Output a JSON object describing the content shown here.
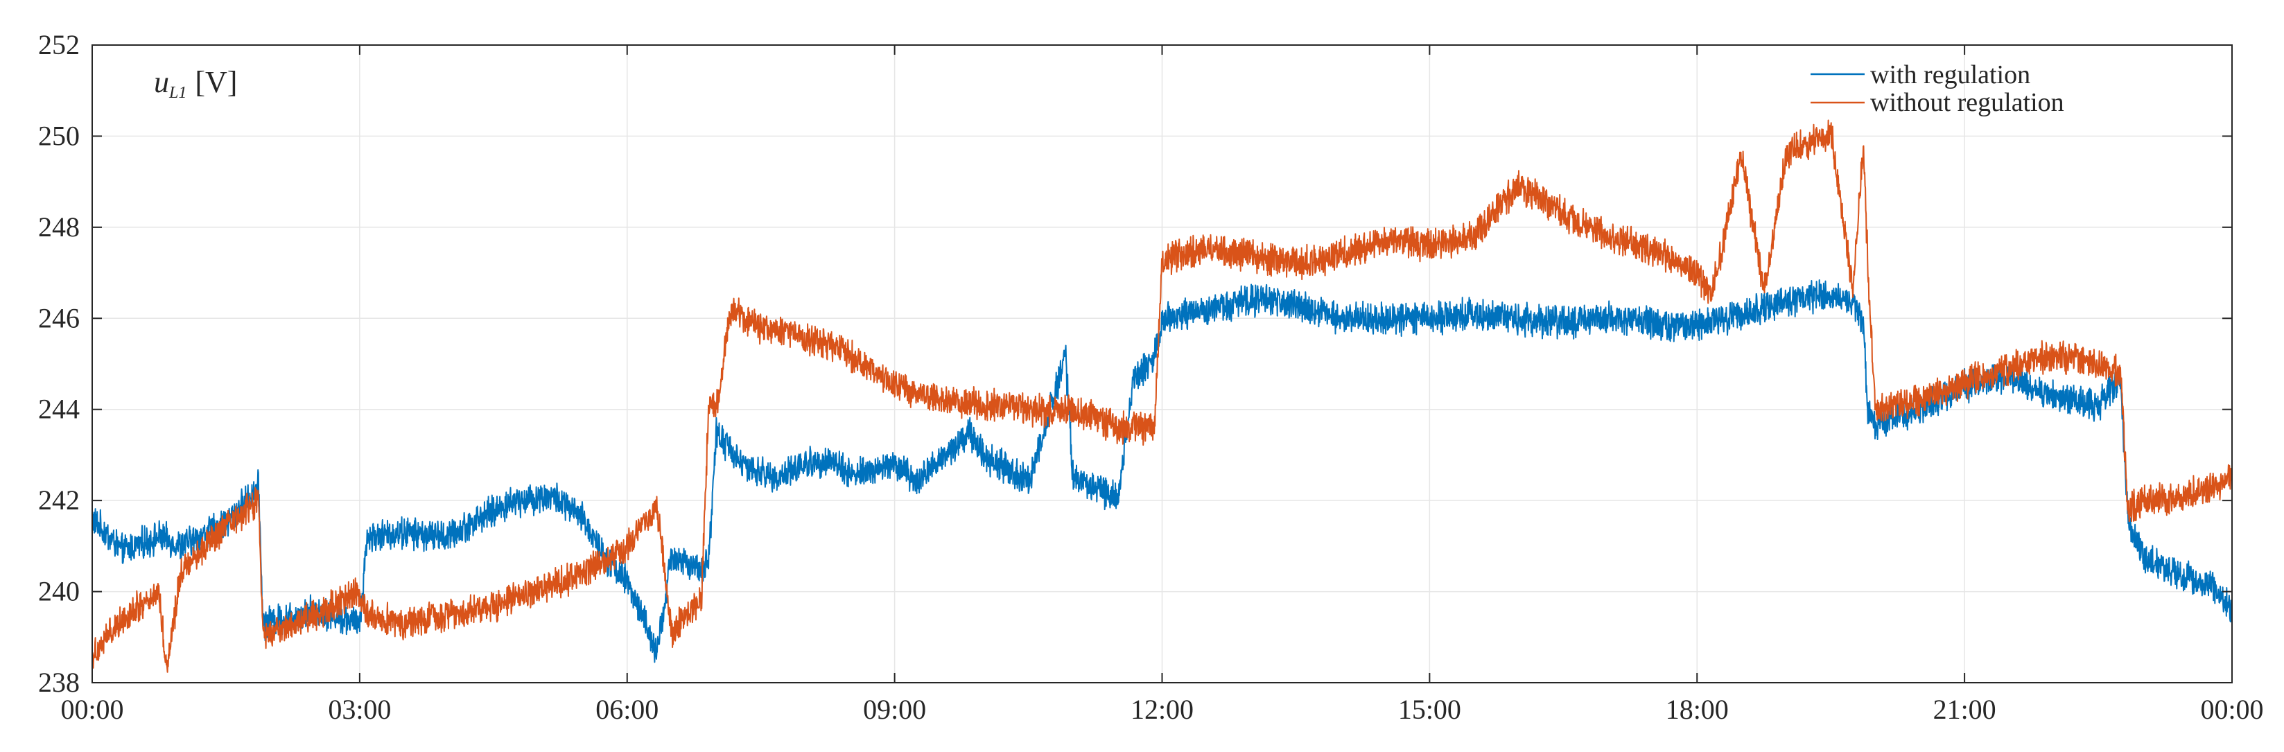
{
  "chart_data": {
    "type": "line",
    "ylabel_symbol": "u",
    "ylabel_subscript": "L1",
    "ylabel_unit": "[V]",
    "ylim": [
      238,
      252
    ],
    "yticks": [
      238,
      240,
      242,
      244,
      246,
      248,
      250,
      252
    ],
    "ytick_labels": [
      "238",
      "240",
      "242",
      "244",
      "246",
      "248",
      "250",
      "252"
    ],
    "xlim_hours": [
      0,
      24
    ],
    "xtick_labels": [
      "00:00",
      "03:00",
      "06:00",
      "09:00",
      "12:00",
      "15:00",
      "18:00",
      "21:00",
      "00:00"
    ],
    "grid": true,
    "legend_position": "top-right",
    "series": [
      {
        "name": "with regulation",
        "color": "#0072BD",
        "x": [
          "00:00",
          "00:20",
          "00:45",
          "01:00",
          "01:30",
          "01:52",
          "01:55",
          "02:30",
          "03:00",
          "03:05",
          "03:30",
          "04:00",
          "04:20",
          "04:45",
          "05:10",
          "05:30",
          "05:45",
          "06:00",
          "06:10",
          "06:20",
          "06:30",
          "06:50",
          "06:55",
          "07:00",
          "07:20",
          "07:40",
          "08:00",
          "08:15",
          "08:30",
          "08:40",
          "09:00",
          "09:15",
          "09:30",
          "09:50",
          "10:00",
          "10:15",
          "10:30",
          "10:50",
          "10:55",
          "11:00",
          "11:15",
          "11:30",
          "11:40",
          "11:55",
          "12:00",
          "12:30",
          "13:00",
          "13:30",
          "14:00",
          "14:30",
          "15:00",
          "15:30",
          "16:00",
          "16:30",
          "17:00",
          "17:30",
          "18:00",
          "18:30",
          "19:00",
          "19:30",
          "19:45",
          "19:52",
          "19:55",
          "20:00",
          "20:30",
          "21:00",
          "21:30",
          "22:00",
          "22:30",
          "22:45",
          "22:50",
          "23:00",
          "23:15",
          "23:30",
          "23:45",
          "24:00"
        ],
        "values": [
          241.6,
          240.9,
          241.2,
          241.0,
          241.5,
          242.3,
          239.3,
          239.6,
          239.3,
          241.2,
          241.3,
          241.2,
          241.6,
          242.0,
          242.1,
          241.6,
          240.8,
          240.2,
          239.5,
          238.6,
          240.8,
          240.4,
          240.8,
          243.5,
          242.7,
          242.5,
          242.8,
          242.9,
          242.6,
          242.6,
          242.8,
          242.4,
          242.9,
          243.5,
          243.0,
          242.7,
          242.4,
          244.6,
          245.2,
          242.5,
          242.3,
          242.0,
          244.6,
          245.2,
          246.0,
          246.2,
          246.4,
          246.3,
          246.0,
          246.0,
          246.0,
          246.1,
          246.0,
          245.9,
          246.0,
          245.9,
          245.8,
          246.1,
          246.4,
          246.5,
          246.4,
          245.8,
          243.9,
          243.7,
          244.0,
          244.5,
          244.7,
          244.3,
          244.1,
          244.7,
          241.6,
          240.8,
          240.5,
          240.3,
          240.2,
          239.6
        ]
      },
      {
        "name": "without regulation",
        "color": "#D95319",
        "x": [
          "00:00",
          "00:20",
          "00:45",
          "00:50",
          "01:00",
          "01:30",
          "01:52",
          "01:55",
          "02:30",
          "03:00",
          "03:05",
          "03:30",
          "04:00",
          "04:30",
          "05:00",
          "05:30",
          "06:00",
          "06:20",
          "06:30",
          "06:50",
          "06:55",
          "07:00",
          "07:10",
          "07:30",
          "08:00",
          "08:30",
          "09:00",
          "09:30",
          "10:00",
          "10:30",
          "11:00",
          "11:30",
          "11:55",
          "12:00",
          "12:30",
          "13:00",
          "13:30",
          "14:00",
          "14:30",
          "15:00",
          "15:30",
          "16:00",
          "16:30",
          "17:00",
          "17:30",
          "18:00",
          "18:10",
          "18:30",
          "18:45",
          "19:00",
          "19:30",
          "19:45",
          "19:52",
          "19:55",
          "20:00",
          "20:30",
          "21:00",
          "21:30",
          "22:00",
          "22:30",
          "22:45",
          "22:50",
          "23:00",
          "23:30",
          "24:00"
        ],
        "values": [
          238.6,
          239.4,
          240.0,
          238.3,
          240.5,
          241.4,
          242.0,
          239.0,
          239.5,
          240.0,
          239.5,
          239.3,
          239.5,
          239.7,
          240.0,
          240.4,
          241.0,
          241.9,
          239.1,
          239.8,
          244.2,
          244.0,
          246.2,
          245.8,
          245.6,
          245.2,
          244.5,
          244.2,
          244.1,
          244.0,
          244.0,
          243.6,
          243.6,
          247.3,
          247.5,
          247.4,
          247.2,
          247.4,
          247.7,
          247.6,
          247.8,
          248.9,
          248.3,
          247.8,
          247.5,
          247.0,
          246.5,
          249.6,
          246.6,
          249.6,
          250.1,
          246.6,
          249.9,
          247.1,
          244.0,
          244.2,
          244.6,
          244.9,
          245.2,
          245.0,
          244.8,
          241.8,
          242.0,
          242.1,
          242.5
        ]
      }
    ]
  }
}
